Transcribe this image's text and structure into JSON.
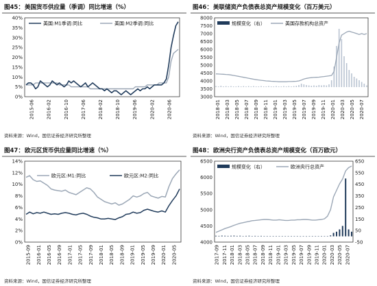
{
  "colors": {
    "dark": "#1f3a5a",
    "light": "#9aa6b5",
    "bars": "#b8c3d1",
    "rule": "#1a1a1a"
  },
  "source": "资料来源：Wind，国信证券经济研究所整理",
  "chart_data": [
    {
      "type": "line",
      "title_num": "图45：",
      "title": "美国货币供应量（季调）同比增速（%）",
      "ylim": [
        0,
        40
      ],
      "y_ticks": [
        "0%",
        "5%",
        "10%",
        "15%",
        "20%",
        "25%",
        "30%",
        "35%",
        "40%"
      ],
      "x_ticks": [
        "2015-06",
        "2016-02",
        "2016-10",
        "2017-06",
        "2018-02",
        "2018-10",
        "2019-06",
        "2020-02",
        "2020-06"
      ],
      "x_ticks_shown": [
        "2015-06",
        "2016-02",
        "2016-10",
        "2017-06",
        "2018-02",
        "2018-10",
        "2019-06",
        "2020-02",
        "2020-06",
        "2016-06",
        "2017-02",
        "2017-10",
        "2018-06",
        "2019-02",
        "2019-10"
      ],
      "series": [
        {
          "name": "美国:M1季调:同比",
          "color": "#1f3a5a",
          "values": [
            6,
            7,
            7,
            6,
            4,
            5,
            8,
            7,
            6,
            5,
            6,
            8,
            7,
            6,
            7,
            6,
            5,
            6,
            8,
            7,
            8,
            7,
            6,
            5,
            6,
            7,
            5,
            6,
            7,
            6,
            5,
            4,
            4,
            3,
            4,
            3,
            2,
            3,
            3,
            2,
            1,
            2,
            3,
            2,
            1,
            2,
            3,
            4,
            3,
            4,
            4,
            5,
            4,
            5,
            6,
            6,
            6,
            6,
            7,
            9,
            16,
            25,
            31,
            36,
            38
          ]
        },
        {
          "name": "美国:M2季调:同比",
          "color": "#9aa6b5",
          "values": [
            6,
            6,
            6,
            6,
            7,
            7,
            7,
            7,
            7,
            7,
            7,
            7,
            7,
            7,
            6,
            6,
            6,
            6,
            6,
            5,
            5,
            5,
            5,
            5,
            5,
            5,
            5,
            4,
            4,
            4,
            4,
            4,
            4,
            4,
            4,
            4,
            4,
            4,
            4,
            4,
            4,
            4,
            4,
            4,
            4,
            4,
            5,
            5,
            5,
            5,
            5,
            6,
            6,
            6,
            6,
            6,
            7,
            7,
            7,
            7,
            10,
            18,
            22,
            23,
            24
          ]
        }
      ]
    },
    {
      "type": "bar+line",
      "title_num": "图46：",
      "title": "美联储资产负债表总资产规模变化（百万美元）",
      "ylim": [
        3000,
        8000
      ],
      "y_ticks": [
        "3000",
        "3500",
        "4000",
        "4500",
        "5000",
        "5500",
        "6000",
        "6500",
        "7000",
        "7500",
        "8000"
      ],
      "x_ticks": [
        "2018-01",
        "2018-03",
        "2018-05",
        "2018-07",
        "2018-09",
        "2018-11",
        "2019-01",
        "2019-03",
        "2019-05",
        "2019-07",
        "2019-09",
        "2019-11",
        "2020-01",
        "2020-03",
        "2020-05",
        "2020-07"
      ],
      "series": [
        {
          "name": "规模变化（右）",
          "color": "#1f3a5a"
        },
        {
          "name": "美国存款机构总资产",
          "color": "#9aa6b5",
          "values": [
            4450,
            4440,
            4430,
            4420,
            4410,
            4400,
            4380,
            4350,
            4320,
            4290,
            4260,
            4230,
            4200,
            4170,
            4140,
            4110,
            4080,
            4060,
            4040,
            4020,
            4000,
            3990,
            3980,
            3970,
            3960,
            3950,
            3950,
            3950,
            3950,
            3960,
            3960,
            3970,
            3980,
            4000,
            4050,
            4120,
            4160,
            4190,
            4210,
            4220,
            4230,
            4240,
            4260,
            4280,
            4300,
            4320,
            4350,
            4600,
            5500,
            6400,
            6900,
            7000,
            7100,
            7150,
            7100,
            7050,
            7000,
            6950,
            7000,
            6950,
            7000
          ]
        },
        {
          "name": "规模变化",
          "color": "#b8c3d1",
          "values": [
            3,
            2,
            4,
            2,
            3,
            2,
            3,
            2,
            2,
            3,
            2,
            3,
            2,
            3,
            2,
            3,
            2,
            2,
            3,
            2,
            2,
            3,
            2,
            2,
            3,
            2,
            2,
            3,
            2,
            3,
            2,
            3,
            4,
            6,
            10,
            8,
            6,
            5,
            4,
            5,
            4,
            6,
            5,
            6,
            5,
            8,
            20,
            60,
            120,
            170,
            140,
            90,
            70,
            50,
            40,
            30,
            25,
            20,
            15,
            10,
            5
          ]
        }
      ]
    },
    {
      "type": "line",
      "title_num": "图47：",
      "title": "欧元区货币供应量同比增速（%）",
      "ylim": [
        0,
        14
      ],
      "y_ticks": [
        "0%",
        "2%",
        "4%",
        "6%",
        "8%",
        "10%",
        "12%",
        "14%"
      ],
      "x_ticks": [
        "2015-09",
        "2016-01",
        "2016-05",
        "2016-09",
        "2017-01",
        "2017-05",
        "2017-09",
        "2018-01",
        "2018-05",
        "2018-09",
        "2019-01",
        "2019-05",
        "2019-09",
        "2020-01",
        "2020-05"
      ],
      "series": [
        {
          "name": "欧元区:M1:同比",
          "color": "#9aa6b5",
          "values": [
            11.2,
            11.5,
            10.8,
            10.5,
            10.6,
            10.2,
            9.8,
            9.2,
            9.0,
            8.9,
            8.8,
            9.0,
            8.6,
            8.4,
            8.2,
            8.6,
            9.0,
            9.4,
            9.2,
            8.6,
            7.8,
            7.4,
            7.0,
            6.8,
            6.6,
            6.8,
            6.4,
            6.6,
            7.0,
            7.4,
            8.0,
            7.8,
            8.0,
            8.4,
            8.6,
            8.0,
            7.8,
            7.6,
            7.9,
            7.8,
            9.6,
            11.0,
            11.8,
            12.5
          ]
        },
        {
          "name": "欧元区:M2:同比",
          "color": "#1f3a5a",
          "values": [
            4.8,
            5.2,
            4.9,
            5.1,
            5.0,
            5.2,
            5.0,
            4.8,
            4.9,
            4.8,
            5.0,
            5.1,
            5.0,
            4.8,
            4.7,
            4.9,
            5.0,
            4.8,
            4.5,
            4.3,
            4.2,
            4.0,
            4.0,
            4.1,
            4.0,
            3.9,
            4.2,
            4.4,
            4.8,
            4.9,
            5.2,
            5.0,
            5.1,
            5.5,
            5.7,
            5.5,
            5.3,
            5.2,
            5.4,
            5.2,
            6.3,
            7.2,
            8.0,
            9.2
          ]
        }
      ]
    },
    {
      "type": "bar+line",
      "title_num": "图48：",
      "title": "欧洲央行资产负债表总资产规模变化（百万欧元）",
      "ylim": [
        4000,
        6500
      ],
      "y_ticks": [
        "4000",
        "4500",
        "5000",
        "5500",
        "6000",
        "6500"
      ],
      "y2_ticks": [
        "-50",
        "50",
        "150",
        "250",
        "350",
        "450",
        "550",
        "650"
      ],
      "y2lim": [
        -50,
        650
      ],
      "x_ticks": [
        "2017-09",
        "2017-11",
        "2018-01",
        "2018-03",
        "2018-05",
        "2018-07",
        "2018-09",
        "2018-11",
        "2019-01",
        "2019-03",
        "2019-05",
        "2019-07",
        "2019-09",
        "2019-11",
        "2020-01",
        "2020-03",
        "2020-05",
        "2020-07"
      ],
      "series": [
        {
          "name": "规模变化（右）",
          "color": "#1f3a5a",
          "values": [
            5,
            4,
            6,
            5,
            4,
            5,
            6,
            4,
            5,
            3,
            4,
            5,
            3,
            4,
            3,
            4,
            2,
            3,
            2,
            3,
            2,
            2,
            1,
            2,
            1,
            1,
            1,
            1,
            0,
            1,
            0,
            1,
            1,
            2,
            1,
            2,
            2,
            3,
            8,
            30,
            40,
            60,
            90,
            500,
            60,
            40
          ]
        },
        {
          "name": "欧洲央行总资产",
          "color": "#9aa6b5",
          "values": [
            4300,
            4340,
            4380,
            4420,
            4450,
            4480,
            4520,
            4550,
            4580,
            4600,
            4620,
            4640,
            4660,
            4670,
            4680,
            4690,
            4700,
            4700,
            4690,
            4680,
            4680,
            4690,
            4680,
            4670,
            4670,
            4680,
            4680,
            4690,
            4690,
            4700,
            4700,
            4690,
            4680,
            4680,
            4690,
            4700,
            4720,
            4800,
            5000,
            5400,
            5600,
            5800,
            5950,
            6200,
            6300,
            6350
          ]
        }
      ]
    }
  ]
}
